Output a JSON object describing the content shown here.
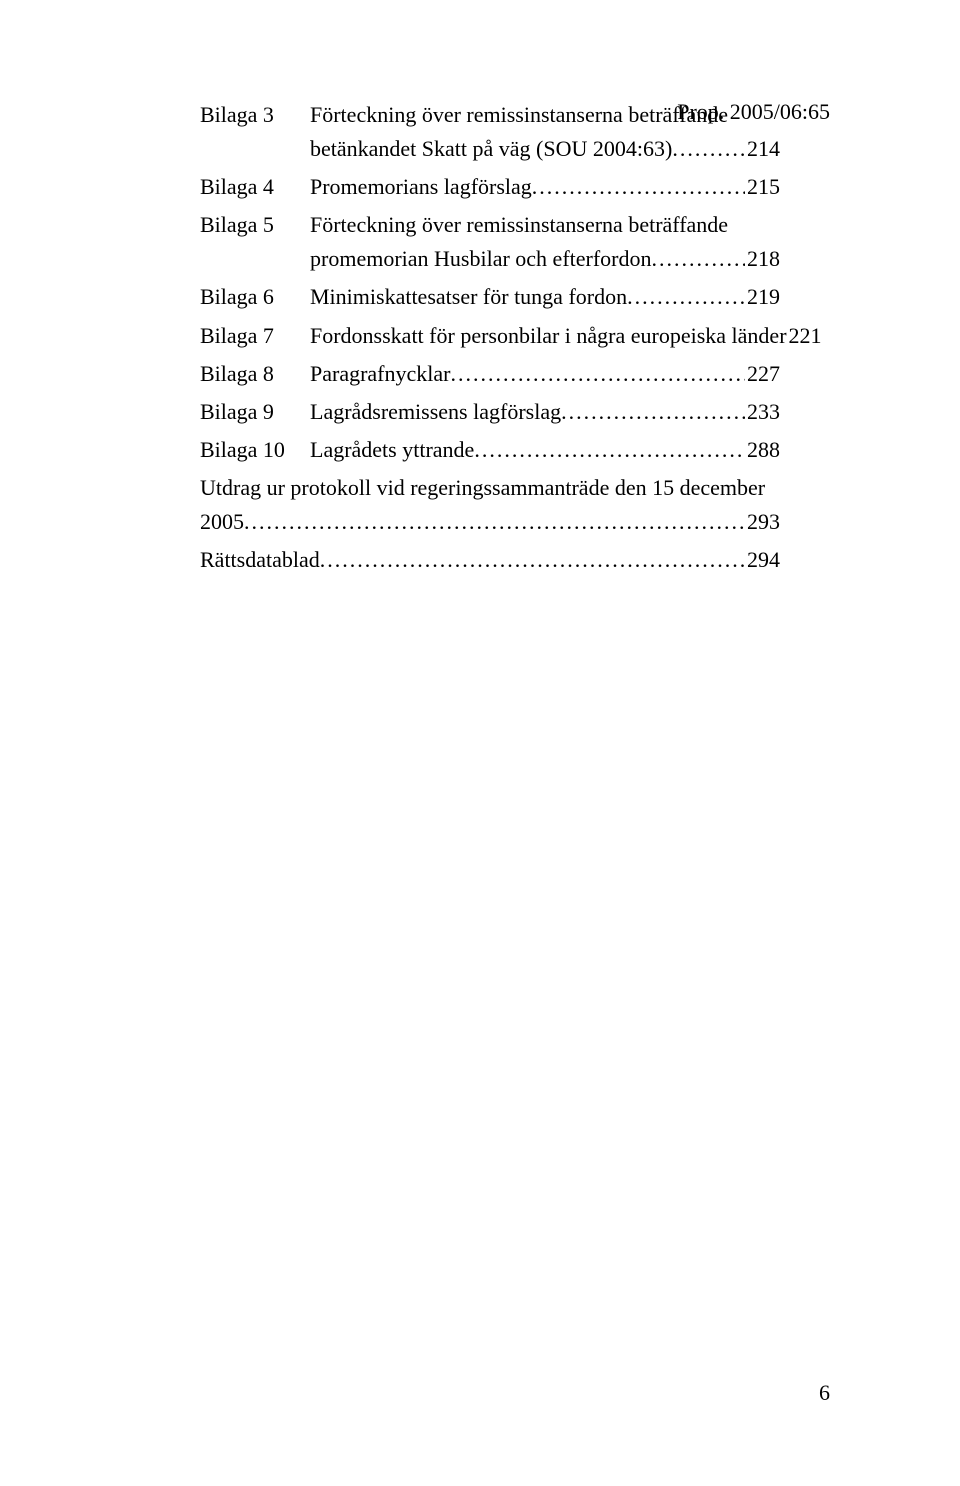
{
  "header": {
    "right": "Prop. 2005/06:65"
  },
  "toc": {
    "items": [
      {
        "label": "Bilaga 3",
        "lines": [
          "Förteckning över remissinstanserna beträffande"
        ],
        "lastLineLead": "betänkandet Skatt på väg (SOU 2004:63)",
        "page": "214"
      },
      {
        "label": "Bilaga 4",
        "lines": [],
        "lastLineLead": "Promemorians lagförslag",
        "page": "215"
      },
      {
        "label": "Bilaga 5",
        "lines": [
          "Förteckning över remissinstanserna beträffande"
        ],
        "lastLineLead": "promemorian Husbilar och efterfordon",
        "page": "218"
      },
      {
        "label": "Bilaga 6",
        "lines": [],
        "lastLineLead": "Minimiskattesatser för tunga fordon",
        "page": "219"
      },
      {
        "label": "Bilaga 7",
        "lines": [],
        "lastLineLead": "Fordonsskatt för personbilar i några europeiska länder",
        "page": "221"
      },
      {
        "label": "Bilaga 8",
        "lines": [],
        "lastLineLead": "Paragrafnycklar",
        "page": "227"
      },
      {
        "label": "Bilaga 9",
        "lines": [],
        "lastLineLead": "Lagrådsremissens lagförslag",
        "page": "233"
      },
      {
        "label": "Bilaga 10",
        "lines": [],
        "lastLineLead": "Lagrådets yttrande",
        "page": "288"
      }
    ],
    "bottom": [
      {
        "lines": [
          "Utdrag ur protokoll vid regeringssammanträde den 15 december"
        ],
        "lastLineLead": "2005",
        "page": "293"
      },
      {
        "lines": [],
        "lastLineLead": "Rättsdatablad",
        "page": "294"
      }
    ]
  },
  "footer": {
    "pageNumber": "6"
  },
  "style": {
    "dotFill": "...................................................................................................................................................................."
  }
}
